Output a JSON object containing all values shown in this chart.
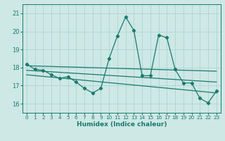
{
  "xlabel": "Humidex (Indice chaleur)",
  "xlim": [
    -0.5,
    23.5
  ],
  "ylim": [
    15.5,
    21.5
  ],
  "yticks": [
    16,
    17,
    18,
    19,
    20,
    21
  ],
  "xticks": [
    0,
    1,
    2,
    3,
    4,
    5,
    6,
    7,
    8,
    9,
    10,
    11,
    12,
    13,
    14,
    15,
    16,
    17,
    18,
    19,
    20,
    21,
    22,
    23
  ],
  "bg_color": "#cde8e5",
  "grid_color": "#b0d4d0",
  "line_color": "#1a7a6e",
  "line1_x": [
    0,
    1,
    2,
    3,
    4,
    5,
    6,
    7,
    8,
    9,
    10,
    11,
    12,
    13,
    14,
    15,
    16,
    17,
    18,
    19,
    20,
    21,
    22,
    23
  ],
  "line1_y": [
    18.2,
    17.9,
    17.85,
    17.6,
    17.4,
    17.5,
    17.2,
    16.85,
    16.6,
    16.85,
    18.5,
    19.75,
    20.8,
    20.05,
    17.55,
    17.55,
    19.8,
    19.65,
    17.9,
    17.15,
    17.15,
    16.3,
    16.05,
    16.7
  ],
  "line2_x": [
    0,
    23
  ],
  "line2_y": [
    18.1,
    17.8
  ],
  "line3_x": [
    0,
    23
  ],
  "line3_y": [
    17.85,
    17.2
  ],
  "line4_x": [
    0,
    23
  ],
  "line4_y": [
    17.6,
    16.6
  ]
}
